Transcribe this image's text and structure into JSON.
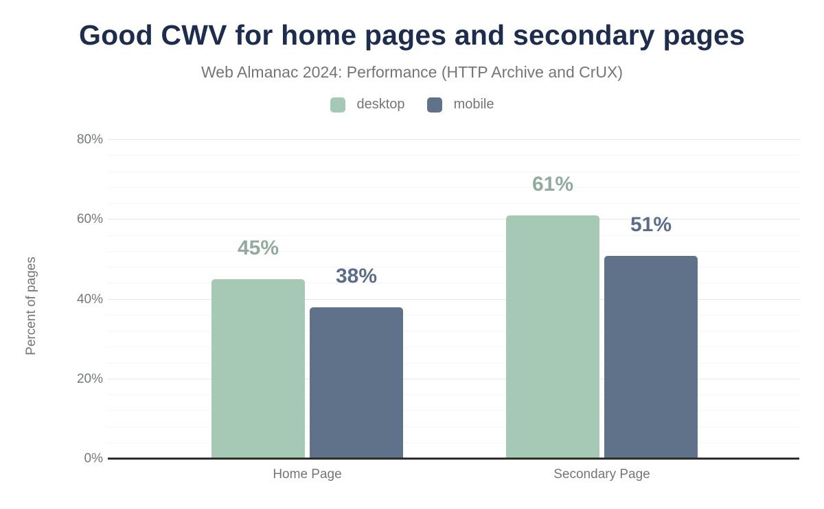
{
  "chart_data": {
    "type": "bar",
    "title": "Good CWV for home pages and secondary pages",
    "subtitle": "Web Almanac 2024: Performance (HTTP Archive and CrUX)",
    "categories": [
      "Home Page",
      "Secondary Page"
    ],
    "series": [
      {
        "name": "desktop",
        "values": [
          45,
          61
        ],
        "color": "#a6c9b6",
        "label_color": "#92ab9e"
      },
      {
        "name": "mobile",
        "values": [
          38,
          51
        ],
        "color": "#60718a",
        "label_color": "#5b6d89"
      }
    ],
    "value_suffix": "%",
    "data_labels": [
      [
        "45%",
        "61%"
      ],
      [
        "38%",
        "51%"
      ]
    ],
    "ylabel": "Percent of pages",
    "y_ticks": [
      "0%",
      "20%",
      "40%",
      "60%",
      "80%"
    ],
    "ylim": [
      0,
      80
    ],
    "major_grid_step": 20,
    "minor_grid_step": 4,
    "grid": true,
    "legend_position": "top"
  },
  "colors": {
    "background": "#ffffff",
    "title": "#1e2d4d",
    "subtitle": "#757575",
    "axis_text": "#75787b",
    "category_text": "#757575",
    "axis_line": "#2d2d2d",
    "major_gridline": "#e4e7e7",
    "minor_gridline": "#f4f6f6"
  }
}
